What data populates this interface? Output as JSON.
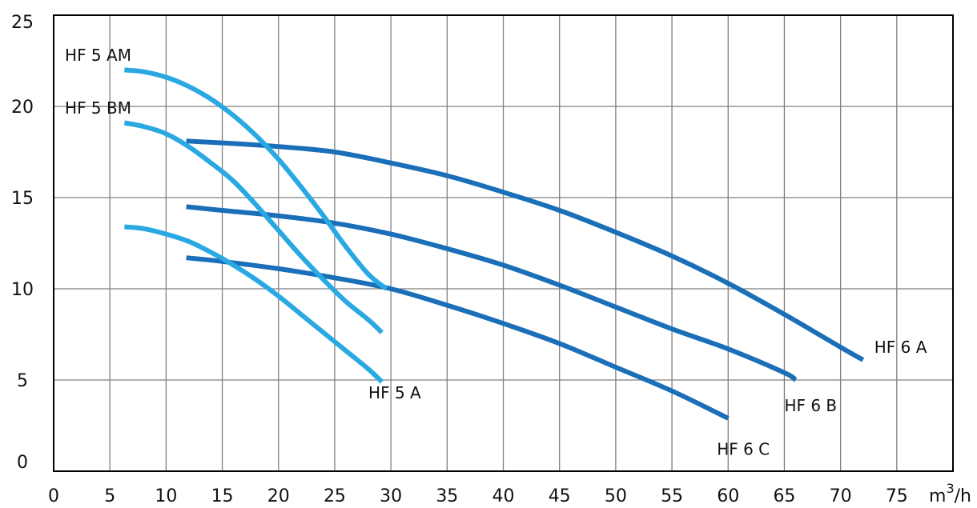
{
  "chart_data": {
    "type": "line",
    "title": "",
    "xlabel": "m³/h",
    "xlabel_base": "m",
    "xlabel_sup": "3",
    "xlabel_suffix": "/h",
    "ylabel": "",
    "xlim": [
      0,
      80
    ],
    "ylim": [
      0,
      25
    ],
    "xticks": [
      0,
      5,
      10,
      15,
      20,
      25,
      30,
      35,
      40,
      45,
      50,
      55,
      60,
      65,
      70,
      75
    ],
    "yticks": [
      0,
      5,
      10,
      15,
      20,
      25
    ],
    "grid": true,
    "colors": {
      "hf5": "#29a8e2",
      "hf6": "#1a6fb8",
      "grid": "#7f7f7f",
      "frame": "#000000"
    },
    "series": [
      {
        "name": "HF 5 AM",
        "color_key": "hf5",
        "x": [
          6.3,
          8,
          10,
          12,
          14,
          16,
          18,
          20,
          22,
          24,
          26,
          28,
          29.6
        ],
        "y": [
          22,
          21.9,
          21.6,
          21.1,
          20.4,
          19.5,
          18.4,
          17.1,
          15.6,
          14.0,
          12.3,
          10.8,
          10.0
        ]
      },
      {
        "name": "HF 5 BM",
        "color_key": "hf5",
        "x": [
          6.3,
          8,
          10,
          12,
          14,
          16,
          18,
          20,
          22,
          24,
          26,
          28,
          29.2
        ],
        "y": [
          19.1,
          18.9,
          18.5,
          17.8,
          16.9,
          15.9,
          14.6,
          13.2,
          11.8,
          10.5,
          9.3,
          8.3,
          7.6
        ]
      },
      {
        "name": "HF 5 A",
        "color_key": "hf5",
        "x": [
          6.3,
          8,
          10,
          12,
          14,
          16,
          18,
          20,
          22,
          24,
          26,
          28,
          29.2
        ],
        "y": [
          13.4,
          13.3,
          13.0,
          12.6,
          12.0,
          11.3,
          10.5,
          9.6,
          8.6,
          7.6,
          6.6,
          5.6,
          4.9
        ]
      },
      {
        "name": "HF 6 A",
        "color_key": "hf6",
        "x": [
          11.8,
          15,
          20,
          25,
          30,
          35,
          40,
          45,
          50,
          55,
          60,
          65,
          70,
          72
        ],
        "y": [
          18.1,
          18.0,
          17.8,
          17.5,
          16.9,
          16.2,
          15.3,
          14.3,
          13.1,
          11.8,
          10.3,
          8.6,
          6.8,
          6.1
        ]
      },
      {
        "name": "HF 6 B",
        "color_key": "hf6",
        "x": [
          11.8,
          15,
          20,
          25,
          30,
          35,
          40,
          45,
          50,
          55,
          60,
          65,
          66
        ],
        "y": [
          14.5,
          14.3,
          14.0,
          13.6,
          13.0,
          12.2,
          11.3,
          10.2,
          9.0,
          7.8,
          6.7,
          5.4,
          5.0
        ]
      },
      {
        "name": "HF 6 C",
        "color_key": "hf6",
        "x": [
          11.8,
          15,
          20,
          25,
          30,
          35,
          40,
          45,
          50,
          55,
          60
        ],
        "y": [
          11.7,
          11.5,
          11.1,
          10.6,
          10.0,
          9.1,
          8.1,
          7.0,
          5.7,
          4.4,
          2.9
        ]
      }
    ],
    "annotations": [
      {
        "text": "HF 5 AM",
        "x": 1,
        "y": 22.5
      },
      {
        "text": "HF 5 BM",
        "x": 1,
        "y": 19.6
      },
      {
        "text": "HF 5 A",
        "x": 28,
        "y": 4.0
      },
      {
        "text": "HF 6 A",
        "x": 73,
        "y": 6.5
      },
      {
        "text": "HF 6 B",
        "x": 65,
        "y": 3.3
      },
      {
        "text": "HF 6 C",
        "x": 59,
        "y": 0.9
      }
    ]
  }
}
